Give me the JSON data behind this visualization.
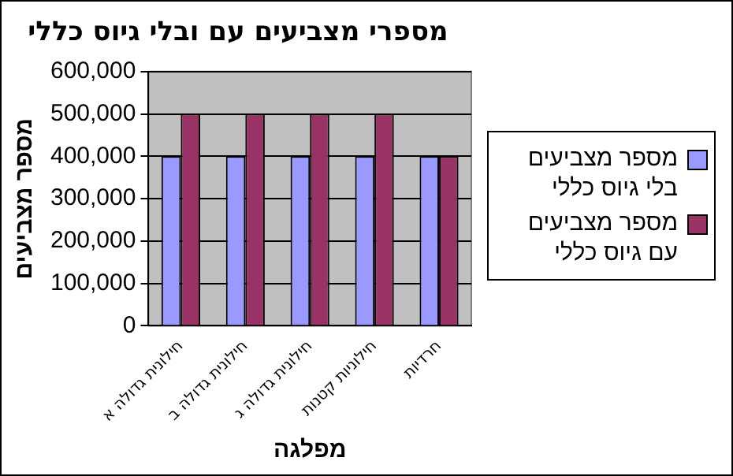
{
  "chart_data": {
    "type": "bar",
    "title": "מספרי מצביעים עם ובלי גיוס כללי",
    "xlabel": "מפלגה",
    "ylabel": "מספר מצביעים",
    "categories": [
      "חילונית גדולה א",
      "חילונית גדולה ב",
      "חילונית גדולה ג",
      "חילוניות קטנות",
      "חרדיות"
    ],
    "series": [
      {
        "name": "מספר מצביעים בלי גיוס כללי",
        "color": "#9999ff",
        "values": [
          400000,
          400000,
          400000,
          400000,
          400000
        ]
      },
      {
        "name": "מספר מצביעים עם גיוס כללי",
        "color": "#993366",
        "values": [
          500000,
          500000,
          500000,
          500000,
          400000
        ]
      }
    ],
    "ylim": [
      0,
      600000
    ],
    "yticks": [
      {
        "value": 0,
        "label": "0"
      },
      {
        "value": 100000,
        "label": "100,000"
      },
      {
        "value": 200000,
        "label": "200,000"
      },
      {
        "value": 300000,
        "label": "300,000"
      },
      {
        "value": 400000,
        "label": "400,000"
      },
      {
        "value": 500000,
        "label": "500,000"
      },
      {
        "value": 600000,
        "label": "600,000"
      }
    ],
    "grid": "y",
    "legend": "right"
  }
}
